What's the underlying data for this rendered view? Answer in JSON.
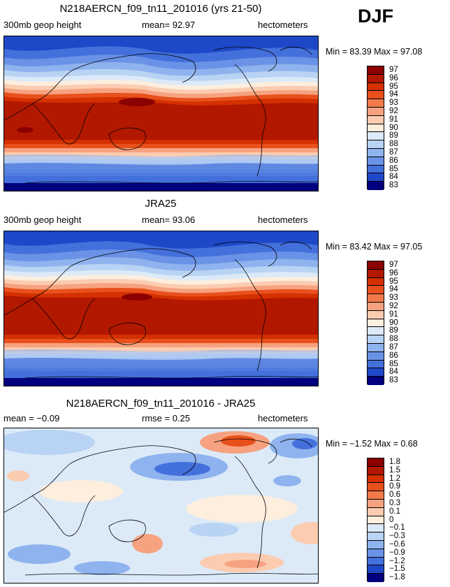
{
  "season": "DJF",
  "panels": [
    {
      "title": "N218AERCN_f09_tn11_201016 (yrs 21-50)",
      "left": "300mb  geop height",
      "center": "mean=   92.97",
      "right": "hectometers",
      "minmax": "Min =   83.39  Max =   97.08",
      "kind": "field"
    },
    {
      "title": "JRA25",
      "left": "300mb  geop height",
      "center": "mean=   93.06",
      "right": "hectometers",
      "minmax": "Min =   83.42  Max =   97.05",
      "kind": "field"
    },
    {
      "title": "N218AERCN_f09_tn11_201016 - JRA25",
      "left": "mean =   −0.09",
      "center": "rmse =    0.25",
      "right": "hectometers",
      "minmax": "Min =   −1.52  Max =     0.68",
      "kind": "diff"
    }
  ],
  "colorbar_field": {
    "labels": [
      "97",
      "96",
      "95",
      "94",
      "93",
      "92",
      "91",
      "90",
      "89",
      "88",
      "87",
      "86",
      "85",
      "84",
      "83"
    ],
    "colors": [
      "#8b0000",
      "#b21800",
      "#d43000",
      "#e8501c",
      "#f07a4c",
      "#f6a280",
      "#fbccb0",
      "#fdeede",
      "#dceaf8",
      "#b9d3f4",
      "#8fb3ee",
      "#6a92e6",
      "#4470dc",
      "#1f48c8",
      "#00007f"
    ]
  },
  "colorbar_diff": {
    "labels": [
      "1.8",
      "1.5",
      "1.2",
      "0.9",
      "0.6",
      "0.3",
      "0.1",
      "0",
      "−0.1",
      "−0.3",
      "−0.6",
      "−0.9",
      "−1.2",
      "−1.5",
      "−1.8"
    ],
    "colors": [
      "#8b0000",
      "#b21800",
      "#d43000",
      "#e8501c",
      "#f07a4c",
      "#f6a280",
      "#fbccb0",
      "#fdeede",
      "#dceaf8",
      "#b9d3f4",
      "#8fb3ee",
      "#6a92e6",
      "#4470dc",
      "#1f48c8",
      "#00007f"
    ]
  }
}
